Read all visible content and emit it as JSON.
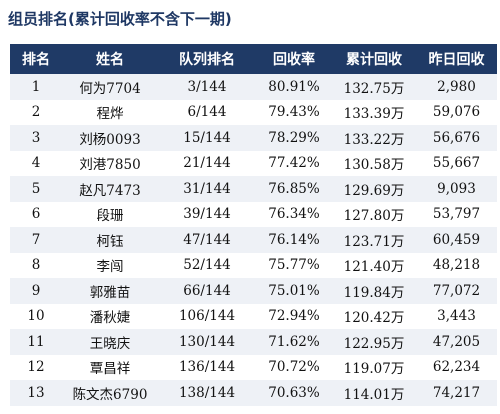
{
  "title": "组员排名(累计回收率不含下一期)",
  "table": {
    "header": [
      "排名",
      "姓名",
      "队列排名",
      "回收率",
      "累计回收",
      "昨日回收"
    ],
    "rows": [
      [
        "1",
        "何为7704",
        "3/144",
        "80.91%",
        "132.75万",
        "2,980"
      ],
      [
        "2",
        "程烨",
        "6/144",
        "79.43%",
        "133.39万",
        "59,076"
      ],
      [
        "3",
        "刘杨0093",
        "15/144",
        "78.29%",
        "133.22万",
        "56,676"
      ],
      [
        "4",
        "刘港7850",
        "21/144",
        "77.42%",
        "130.58万",
        "55,667"
      ],
      [
        "5",
        "赵凡7473",
        "31/144",
        "76.85%",
        "129.69万",
        "9,093"
      ],
      [
        "6",
        "段珊",
        "39/144",
        "76.34%",
        "127.80万",
        "53,797"
      ],
      [
        "7",
        "柯钰",
        "47/144",
        "76.14%",
        "123.71万",
        "60,459"
      ],
      [
        "8",
        "李闯",
        "52/144",
        "75.77%",
        "121.40万",
        "48,218"
      ],
      [
        "9",
        "郭雅苗",
        "66/144",
        "75.01%",
        "119.84万",
        "77,072"
      ],
      [
        "10",
        "潘秋婕",
        "106/144",
        "72.94%",
        "120.42万",
        "3,443"
      ],
      [
        "11",
        "王晓庆",
        "130/144",
        "71.62%",
        "122.95万",
        "47,205"
      ],
      [
        "12",
        "覃昌祥",
        "136/144",
        "70.72%",
        "119.07万",
        "62,234"
      ],
      [
        "13",
        "陈文杰6790",
        "138/144",
        "70.63%",
        "114.01万",
        "74,217"
      ]
    ]
  }
}
